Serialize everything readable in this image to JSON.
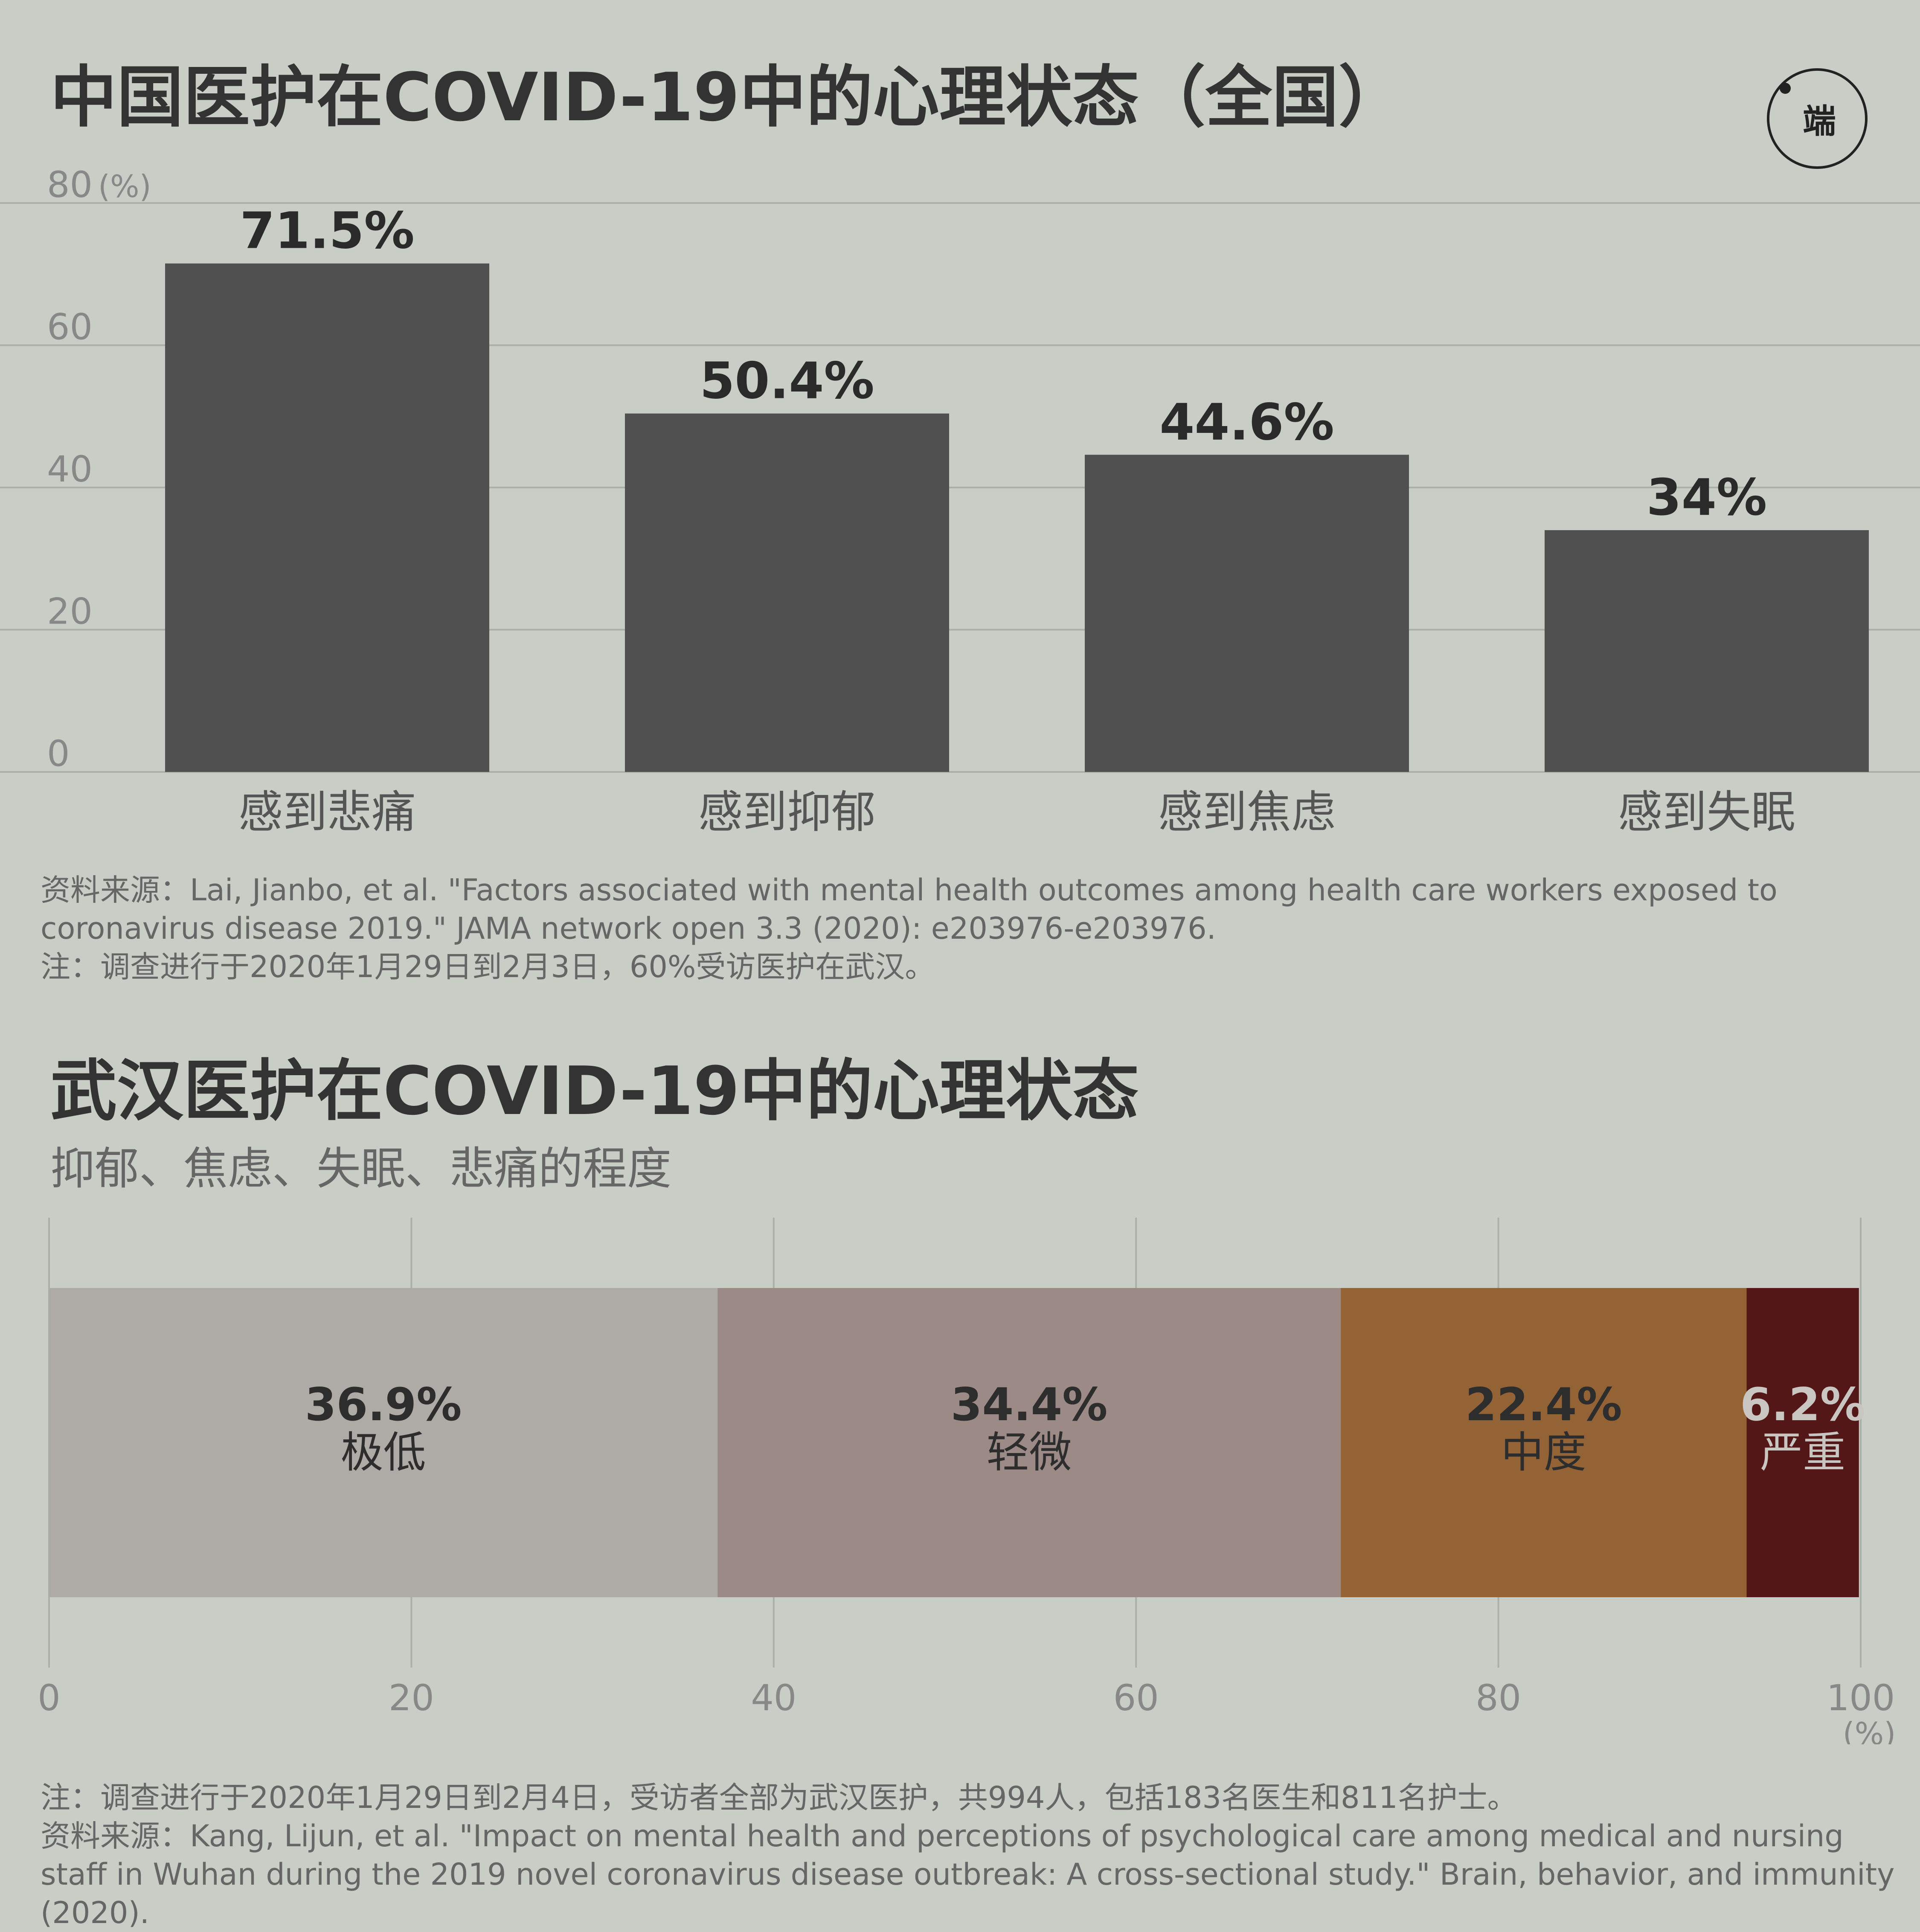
{
  "chart_data": [
    {
      "type": "bar",
      "title": "中国医护在COVID-19中的心理状态（全国）",
      "y_unit": "(%)",
      "ylim": [
        0,
        80
      ],
      "yticks": [
        0,
        20,
        40,
        60,
        80
      ],
      "grid": true,
      "categories": [
        "感到悲痛",
        "感到抑郁",
        "感到焦虑",
        "感到失眠"
      ],
      "values": [
        71.5,
        50.4,
        44.6,
        34
      ],
      "value_labels": [
        "71.5%",
        "50.4%",
        "44.6%",
        "34%"
      ],
      "bar_color": "#505050",
      "source": "资料来源：Lai, Jianbo, et al. \"Factors associated with mental health outcomes among health care workers exposed to coronavirus disease 2019.\" JAMA network open 3.3 (2020): e203976-e203976.",
      "note": "注：调查进行于2020年1月29日到2月3日，60%受访医护在武汉。"
    },
    {
      "type": "bar",
      "orientation": "horizontal-stacked",
      "title": "武汉医护在COVID-19中的心理状态",
      "subtitle": "抑郁、焦虑、失眠、悲痛的程度",
      "x_unit": "(%)",
      "xlim": [
        0,
        100
      ],
      "xticks": [
        0,
        20,
        40,
        60,
        80,
        100
      ],
      "grid": true,
      "series": [
        {
          "name": "极低",
          "value": 36.9,
          "label": "36.9%",
          "color": "#aeaaa6",
          "text_color": "#2d2d2d"
        },
        {
          "name": "轻微",
          "value": 34.4,
          "label": "34.4%",
          "color": "#9b8a86",
          "text_color": "#2d2d2d"
        },
        {
          "name": "中度",
          "value": 22.4,
          "label": "22.4%",
          "color": "#946335",
          "text_color": "#2d2d2d"
        },
        {
          "name": "严重",
          "value": 6.2,
          "label": "6.2%",
          "color": "#541717",
          "text_color": "#c9c6c2"
        }
      ],
      "note": "注：调查进行于2020年1月29日到2月4日，受访者全部为武汉医护，共994人，包括183名医生和811名护士。",
      "source": "资料来源：Kang, Lijun, et al. \"Impact on mental health and perceptions of psychological care among medical and nursing staff in Wuhan during the 2019 novel coronavirus disease outbreak: A cross-sectional study.\" Brain, behavior, and immunity (2020)."
    }
  ],
  "colors": {
    "background": "#c8cdc5",
    "grid": "#aab0a8",
    "axis_text": "#888888",
    "title": "#333333",
    "body_text": "#666666"
  },
  "logo": {
    "text": "端",
    "icon": "initium-logo-icon"
  }
}
